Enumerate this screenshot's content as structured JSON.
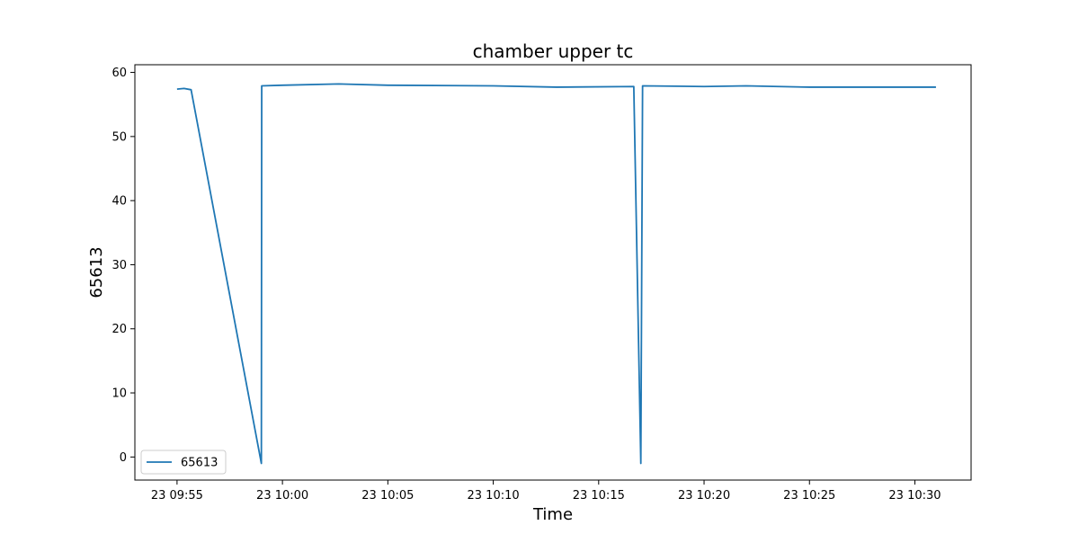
{
  "chart_data": {
    "type": "line",
    "title": "chamber upper tc",
    "xlabel": "Time",
    "ylabel": "65613",
    "x_type": "time",
    "xlim": [
      "2024-01-23 09:53:00",
      "2024-01-23 10:32:40"
    ],
    "ylim": [
      -3.6,
      61.2
    ],
    "x_ticks": [
      {
        "value": "2024-01-23 09:55:00",
        "label": "23 09:55"
      },
      {
        "value": "2024-01-23 10:00:00",
        "label": "23 10:00"
      },
      {
        "value": "2024-01-23 10:05:00",
        "label": "23 10:05"
      },
      {
        "value": "2024-01-23 10:10:00",
        "label": "23 10:10"
      },
      {
        "value": "2024-01-23 10:15:00",
        "label": "23 10:15"
      },
      {
        "value": "2024-01-23 10:20:00",
        "label": "23 10:20"
      },
      {
        "value": "2024-01-23 10:25:00",
        "label": "23 10:25"
      },
      {
        "value": "2024-01-23 10:30:00",
        "label": "23 10:30"
      }
    ],
    "y_ticks": [
      0,
      10,
      20,
      30,
      40,
      50,
      60
    ],
    "grid": false,
    "legend": {
      "position": "bottom-left",
      "entries": [
        "65613"
      ]
    },
    "series": [
      {
        "name": "65613",
        "color": "#1f77b4",
        "points": [
          {
            "x": "2024-01-23 09:55:00",
            "y": 57.4
          },
          {
            "x": "2024-01-23 09:55:20",
            "y": 57.5
          },
          {
            "x": "2024-01-23 09:55:40",
            "y": 57.3
          },
          {
            "x": "2024-01-23 09:59:00",
            "y": -1.0
          },
          {
            "x": "2024-01-23 09:59:01",
            "y": 57.9
          },
          {
            "x": "2024-01-23 10:00:00",
            "y": 58.0
          },
          {
            "x": "2024-01-23 10:02:40",
            "y": 58.2
          },
          {
            "x": "2024-01-23 10:05:00",
            "y": 58.0
          },
          {
            "x": "2024-01-23 10:10:00",
            "y": 57.9
          },
          {
            "x": "2024-01-23 10:13:00",
            "y": 57.7
          },
          {
            "x": "2024-01-23 10:16:40",
            "y": 57.8
          },
          {
            "x": "2024-01-23 10:17:00",
            "y": -1.0
          },
          {
            "x": "2024-01-23 10:17:05",
            "y": 57.9
          },
          {
            "x": "2024-01-23 10:20:00",
            "y": 57.8
          },
          {
            "x": "2024-01-23 10:22:00",
            "y": 57.9
          },
          {
            "x": "2024-01-23 10:25:00",
            "y": 57.7
          },
          {
            "x": "2024-01-23 10:30:00",
            "y": 57.7
          },
          {
            "x": "2024-01-23 10:31:00",
            "y": 57.7
          }
        ]
      }
    ]
  }
}
